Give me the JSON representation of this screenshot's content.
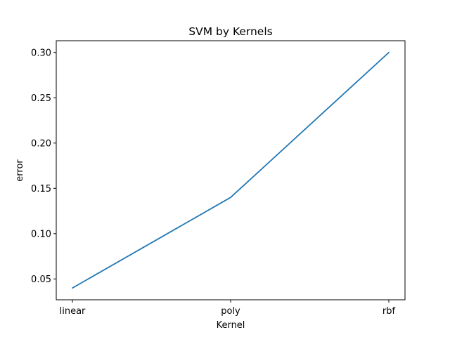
{
  "chart_data": {
    "type": "line",
    "title": "SVM by Kernels",
    "xlabel": "Kernel",
    "ylabel": "error",
    "categories": [
      "linear",
      "poly",
      "rbf"
    ],
    "series": [
      {
        "values": [
          0.04,
          0.14,
          0.3
        ]
      }
    ],
    "ylim": [
      0.027,
      0.313
    ],
    "yticks": [
      0.05,
      0.1,
      0.15,
      0.2,
      0.25,
      0.3
    ],
    "ytick_labels": [
      "0.05",
      "0.10",
      "0.15",
      "0.20",
      "0.25",
      "0.30"
    ],
    "grid": false,
    "line_color": "#1f77b4"
  }
}
